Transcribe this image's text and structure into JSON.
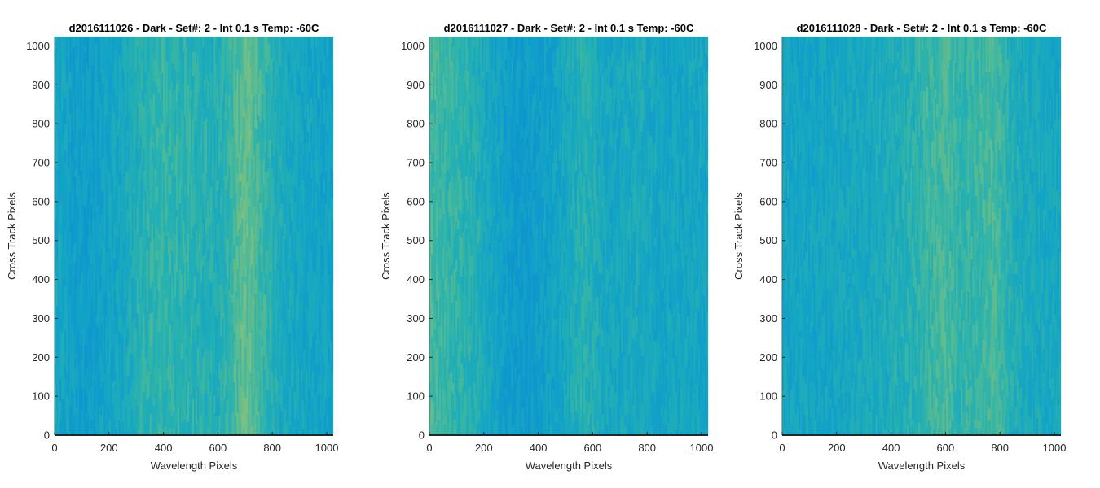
{
  "chart_data": [
    {
      "type": "heatmap",
      "title": "d2016111026 - Dark - Set#: 2 - Int 0.1 s Temp: -60C",
      "xlabel": "Wavelength Pixels",
      "ylabel": "Cross Track Pixels",
      "xlim": [
        0,
        1024
      ],
      "ylim": [
        0,
        1024
      ],
      "xticks": [
        0,
        200,
        400,
        600,
        800,
        1000
      ],
      "yticks": [
        0,
        100,
        200,
        300,
        400,
        500,
        600,
        700,
        800,
        900,
        1000
      ],
      "grid": false,
      "colormap": [
        "#0f8fd0",
        "#12a4c8",
        "#2ab3ad",
        "#6fbf87",
        "#aec46a"
      ],
      "column_intensity": {
        "x": [
          0,
          60,
          120,
          180,
          250,
          320,
          360,
          420,
          480,
          540,
          600,
          650,
          690,
          720,
          760,
          820,
          880,
          940,
          1000,
          1024
        ],
        "values": [
          0.3,
          0.22,
          0.18,
          0.25,
          0.3,
          0.45,
          0.5,
          0.5,
          0.48,
          0.45,
          0.4,
          0.55,
          0.7,
          0.68,
          0.55,
          0.38,
          0.3,
          0.28,
          0.25,
          0.25
        ]
      }
    },
    {
      "type": "heatmap",
      "title": "d2016111027 - Dark - Set#: 2 - Int 0.1 s Temp: -60C",
      "xlabel": "Wavelength Pixels",
      "ylabel": "Cross Track Pixels",
      "xlim": [
        0,
        1024
      ],
      "ylim": [
        0,
        1024
      ],
      "xticks": [
        0,
        200,
        400,
        600,
        800,
        1000
      ],
      "yticks": [
        0,
        100,
        200,
        300,
        400,
        500,
        600,
        700,
        800,
        900,
        1000
      ],
      "grid": false,
      "colormap": [
        "#0f8fd0",
        "#12a4c8",
        "#2ab3ad",
        "#6fbf87",
        "#aec46a"
      ],
      "column_intensity": {
        "x": [
          0,
          40,
          100,
          160,
          220,
          280,
          340,
          400,
          460,
          520,
          560,
          600,
          660,
          720,
          780,
          840,
          900,
          960,
          1024
        ],
        "values": [
          0.62,
          0.55,
          0.5,
          0.45,
          0.3,
          0.2,
          0.15,
          0.18,
          0.25,
          0.35,
          0.45,
          0.4,
          0.3,
          0.32,
          0.35,
          0.3,
          0.28,
          0.3,
          0.3
        ]
      }
    },
    {
      "type": "heatmap",
      "title": "d2016111028 - Dark - Set#: 2 - Int 0.1 s Temp: -60C",
      "xlabel": "Wavelength Pixels",
      "ylabel": "Cross Track Pixels",
      "xlim": [
        0,
        1024
      ],
      "ylim": [
        0,
        1024
      ],
      "xticks": [
        0,
        200,
        400,
        600,
        800,
        1000
      ],
      "yticks": [
        0,
        100,
        200,
        300,
        400,
        500,
        600,
        700,
        800,
        900,
        1000
      ],
      "grid": false,
      "colormap": [
        "#0f8fd0",
        "#12a4c8",
        "#2ab3ad",
        "#6fbf87",
        "#aec46a"
      ],
      "column_intensity": {
        "x": [
          0,
          60,
          120,
          200,
          280,
          360,
          420,
          480,
          540,
          600,
          660,
          720,
          780,
          840,
          900,
          960,
          1024
        ],
        "values": [
          0.3,
          0.28,
          0.28,
          0.3,
          0.32,
          0.35,
          0.4,
          0.45,
          0.55,
          0.6,
          0.5,
          0.55,
          0.6,
          0.42,
          0.35,
          0.32,
          0.3
        ]
      }
    }
  ]
}
